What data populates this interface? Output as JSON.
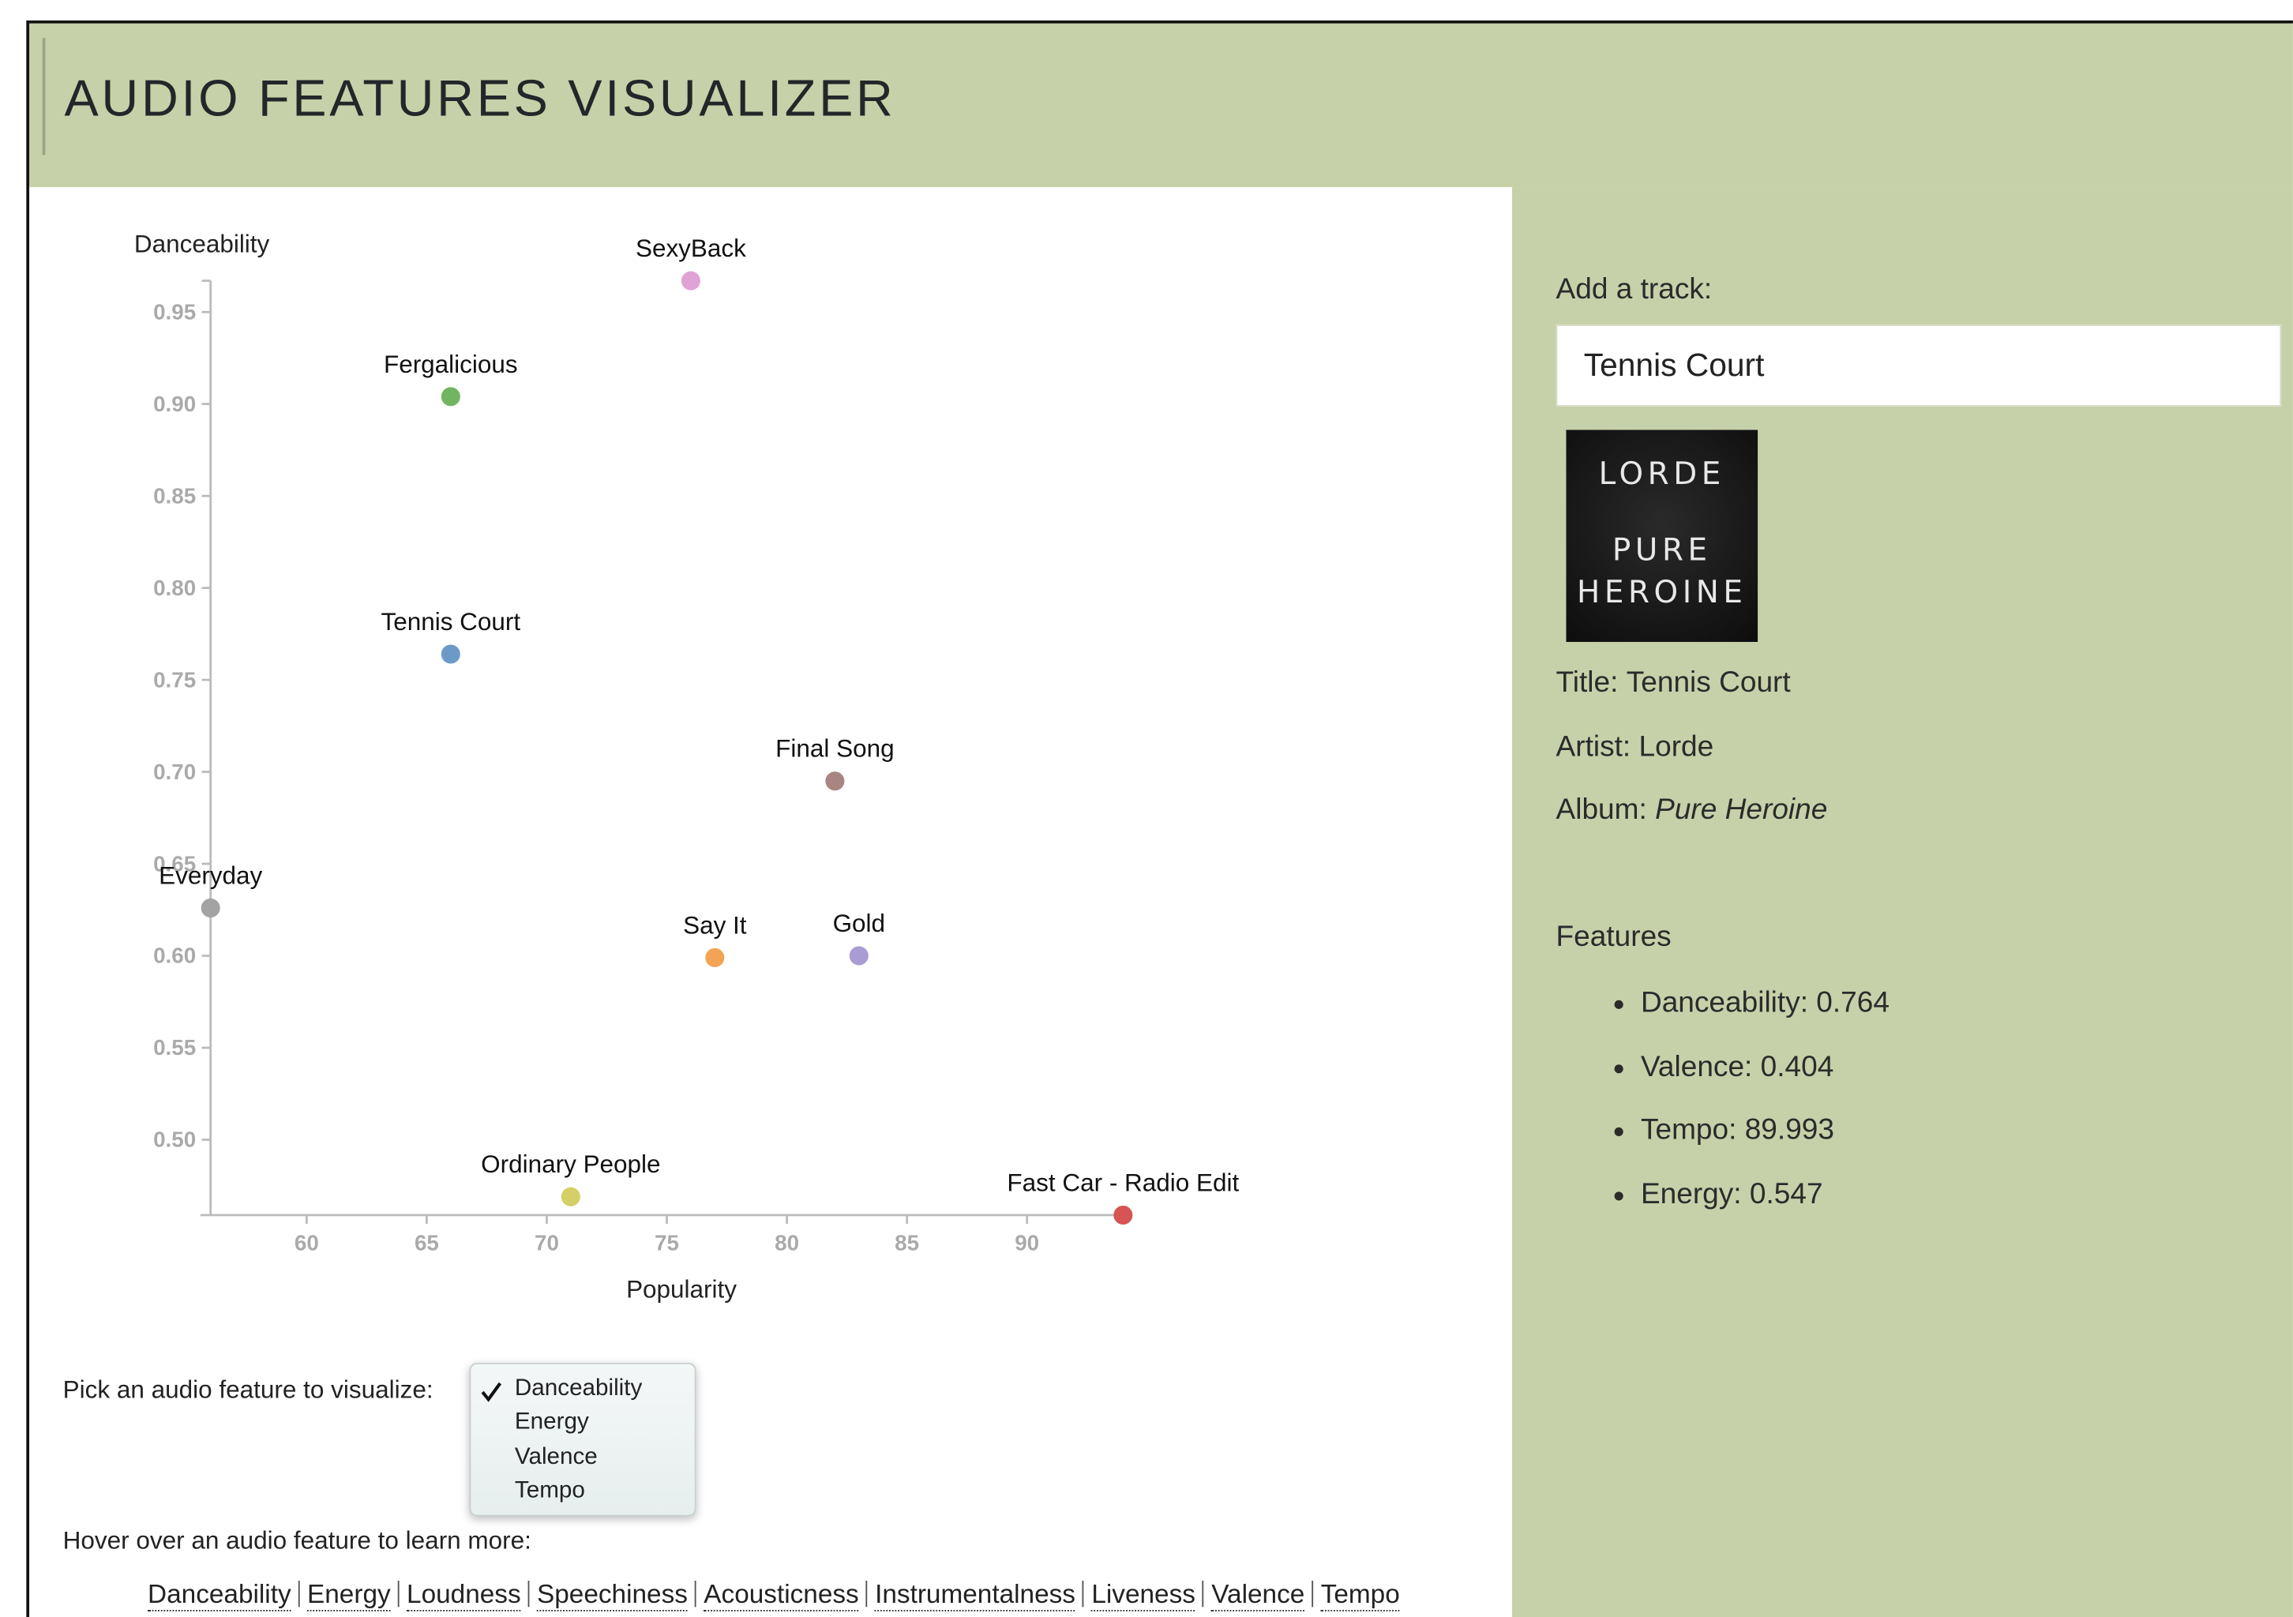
{
  "header": {
    "title": "AUDIO FEATURES VISUALIZER"
  },
  "chart_data": {
    "type": "scatter",
    "x_label": "Popularity",
    "y_label": "Danceability",
    "labels": [
      "SexyBack",
      "Fergalicious",
      "Tennis Court",
      "Final Song",
      "Everyday",
      "Say It",
      "Gold",
      "Ordinary People",
      "Fast Car - Radio Edit"
    ],
    "x": [
      76,
      66,
      66,
      82,
      56,
      77,
      83,
      71,
      94
    ],
    "values": [
      0.967,
      0.904,
      0.764,
      0.695,
      0.626,
      0.599,
      0.6,
      0.469,
      0.459
    ],
    "colors": [
      "#dfa3d6",
      "#72b561",
      "#6b9ac8",
      "#a98581",
      "#a3a3a3",
      "#f2a354",
      "#a99bd3",
      "#d4cf66",
      "#d65454"
    ],
    "xlim": [
      56,
      94
    ],
    "ylim": [
      0.459,
      0.967
    ],
    "xticks": [
      60,
      65,
      70,
      75,
      80,
      85,
      90
    ],
    "yticks": [
      {
        "value": 0.5,
        "label": "0.50"
      },
      0.55,
      {
        "value": 0.6,
        "label": "0.60"
      },
      0.65,
      {
        "value": 0.7,
        "label": "0.70"
      },
      0.75,
      {
        "value": 0.8,
        "label": "0.80"
      },
      0.85,
      {
        "value": 0.9,
        "label": "0.90"
      },
      0.95
    ]
  },
  "controls": {
    "pick_label": "Pick an audio feature to visualize:",
    "options": [
      "Danceability",
      "Energy",
      "Valence",
      "Tempo"
    ],
    "hover_label": "Hover over an audio feature to learn more:",
    "links": [
      "Danceability",
      "Energy",
      "Loudness",
      "Speechiness",
      "Acousticness",
      "Instrumentalness",
      "Liveness",
      "Valence",
      "Tempo"
    ]
  },
  "sidebar": {
    "add_label": "Add a track:",
    "input_value": "Tennis Court",
    "album_art": [
      "LORDE",
      "PURE",
      "HEROINE"
    ],
    "details": [
      {
        "label": "Title:",
        "value": "Tennis Court"
      },
      {
        "label": "Artist:",
        "value": "Lorde"
      },
      {
        "label": "Album:",
        "value": "Pure Heroine"
      }
    ],
    "features_title": "Features",
    "features": [
      "Danceability: 0.764",
      "Valence: 0.404",
      "Tempo: 89.993",
      "Energy: 0.547"
    ]
  }
}
